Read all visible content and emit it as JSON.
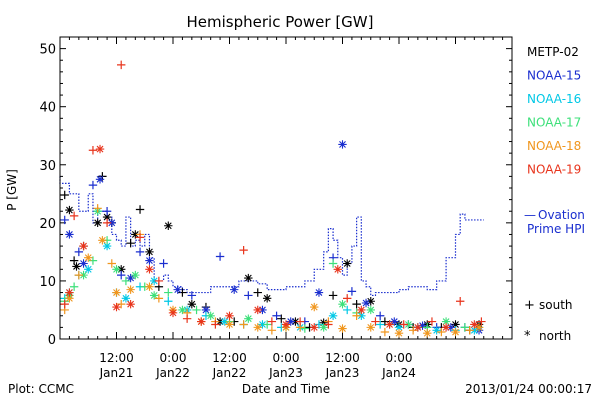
{
  "chart_data": {
    "type": "scatter",
    "title": "Hemispheric Power [GW]",
    "xlabel": "Date and Time",
    "ylabel": "P [GW]",
    "xlim": [
      "2013-01-20T00:00",
      "2013-01-24T00:00"
    ],
    "ylim": [
      0,
      52
    ],
    "y_ticks": [
      0,
      10,
      20,
      30,
      40,
      50
    ],
    "x_ticks": [
      {
        "t": "2013-01-20T12:00",
        "time": "12:00",
        "date": "Jan21"
      },
      {
        "t": "2013-01-21T00:00",
        "time": "0:00",
        "date": "Jan22"
      },
      {
        "t": "2013-01-21T12:00",
        "time": "12:00",
        "date": "Jan22"
      },
      {
        "t": "2013-01-22T00:00",
        "time": "0:00",
        "date": "Jan23"
      },
      {
        "t": "2013-01-22T12:00",
        "time": "12:00",
        "date": "Jan23"
      },
      {
        "t": "2013-01-23T00:00",
        "time": "0:00",
        "date": "Jan24"
      }
    ],
    "grid": false,
    "legend": "right",
    "series": [
      {
        "name": "METP-02",
        "color": "#000000",
        "points": [
          [
            1,
            24.8
          ],
          [
            2,
            22.2
          ],
          [
            3,
            13.5
          ],
          [
            3.5,
            12.5
          ],
          [
            5,
            16
          ],
          [
            8,
            20
          ],
          [
            9,
            28
          ],
          [
            10,
            21
          ],
          [
            11,
            20
          ],
          [
            13,
            12
          ],
          [
            15,
            16.5
          ],
          [
            16,
            18
          ],
          [
            17,
            22.3
          ],
          [
            19,
            15
          ],
          [
            21,
            9
          ],
          [
            23,
            19.5
          ],
          [
            26,
            8
          ],
          [
            28,
            6
          ],
          [
            31,
            5.5
          ],
          [
            34,
            3
          ],
          [
            37,
            3
          ],
          [
            40,
            10.5
          ],
          [
            42,
            8
          ],
          [
            44,
            7
          ],
          [
            47,
            3.5
          ],
          [
            50,
            3
          ],
          [
            53,
            2
          ],
          [
            56,
            2.8
          ],
          [
            58,
            7.5
          ],
          [
            61,
            13
          ],
          [
            63,
            6
          ],
          [
            66,
            6.5
          ],
          [
            69,
            3
          ],
          [
            72,
            2.5
          ],
          [
            75,
            2
          ],
          [
            78,
            2.5
          ],
          [
            81,
            2
          ],
          [
            84,
            2.5
          ],
          [
            87,
            1.5
          ],
          [
            89,
            2.5
          ]
        ]
      },
      {
        "name": "NOAA-15",
        "color": "#1a2ecf",
        "points": [
          [
            1,
            20.5
          ],
          [
            2,
            18
          ],
          [
            4,
            15
          ],
          [
            5,
            13
          ],
          [
            7,
            26.5
          ],
          [
            8.5,
            27.5
          ],
          [
            10,
            22
          ],
          [
            11,
            20
          ],
          [
            13,
            11
          ],
          [
            15,
            10.5
          ],
          [
            17,
            15
          ],
          [
            19,
            13.5
          ],
          [
            22,
            13
          ],
          [
            25,
            8.5
          ],
          [
            28,
            7.5
          ],
          [
            31,
            5
          ],
          [
            34,
            14.2
          ],
          [
            37,
            8.5
          ],
          [
            40,
            7.5
          ],
          [
            43,
            5
          ],
          [
            46,
            4
          ],
          [
            49,
            3
          ],
          [
            52,
            3
          ],
          [
            55,
            8
          ],
          [
            58,
            14
          ],
          [
            60,
            33.5
          ],
          [
            62,
            8.2
          ],
          [
            65,
            6.2
          ],
          [
            68,
            4
          ],
          [
            71,
            3
          ],
          [
            74,
            2.5
          ],
          [
            77,
            2.3
          ],
          [
            80,
            2
          ],
          [
            83,
            2
          ],
          [
            86,
            2
          ],
          [
            89,
            1.5
          ]
        ]
      },
      {
        "name": "NOAA-16",
        "color": "#00c8e6",
        "points": [
          [
            1,
            7
          ],
          [
            2,
            8
          ],
          [
            4,
            11
          ],
          [
            6,
            12
          ],
          [
            8,
            22
          ],
          [
            10,
            16
          ],
          [
            12,
            8
          ],
          [
            14,
            7
          ],
          [
            17,
            9
          ],
          [
            20,
            10
          ],
          [
            23,
            6.5
          ],
          [
            27,
            5
          ],
          [
            31,
            4
          ],
          [
            35,
            3
          ],
          [
            39,
            2.5
          ],
          [
            43,
            2.5
          ],
          [
            47,
            2
          ],
          [
            51,
            2
          ],
          [
            55,
            2.5
          ],
          [
            58,
            4
          ],
          [
            61,
            5
          ],
          [
            64,
            4
          ],
          [
            68,
            2.5
          ],
          [
            72,
            2
          ],
          [
            76,
            2
          ],
          [
            80,
            1.5
          ],
          [
            84,
            1.5
          ],
          [
            88,
            1.5
          ]
        ]
      },
      {
        "name": "NOAA-17",
        "color": "#3de07a",
        "points": [
          [
            1,
            6.5
          ],
          [
            2,
            7.5
          ],
          [
            3,
            9
          ],
          [
            5,
            11
          ],
          [
            7,
            13.5
          ],
          [
            8,
            22
          ],
          [
            10,
            17
          ],
          [
            12,
            12
          ],
          [
            14,
            10
          ],
          [
            16,
            11
          ],
          [
            18,
            9
          ],
          [
            20,
            7.5
          ],
          [
            23,
            8
          ],
          [
            26,
            5
          ],
          [
            29,
            5
          ],
          [
            32,
            4
          ],
          [
            36,
            3
          ],
          [
            40,
            3.5
          ],
          [
            44,
            2.5
          ],
          [
            48,
            2
          ],
          [
            52,
            1.8
          ],
          [
            56,
            2
          ],
          [
            58,
            13
          ],
          [
            60,
            6
          ],
          [
            63,
            4.5
          ],
          [
            66,
            5
          ],
          [
            70,
            2.5
          ],
          [
            74,
            2.5
          ],
          [
            78,
            2
          ],
          [
            82,
            3
          ],
          [
            86,
            2
          ],
          [
            89,
            2
          ]
        ]
      },
      {
        "name": "NOAA-18",
        "color": "#f0961e",
        "points": [
          [
            1,
            5
          ],
          [
            2,
            7
          ],
          [
            4,
            11
          ],
          [
            6,
            14
          ],
          [
            8,
            22.5
          ],
          [
            9,
            17
          ],
          [
            11,
            13
          ],
          [
            12,
            8
          ],
          [
            13,
            6
          ],
          [
            15,
            8.5
          ],
          [
            17,
            18
          ],
          [
            19,
            9
          ],
          [
            21,
            7
          ],
          [
            24,
            5
          ],
          [
            27,
            4.5
          ],
          [
            30,
            3
          ],
          [
            33,
            3
          ],
          [
            36,
            2.5
          ],
          [
            39,
            2.5
          ],
          [
            42,
            2
          ],
          [
            45,
            1.5
          ],
          [
            48,
            2
          ],
          [
            51,
            2
          ],
          [
            54,
            5.5
          ],
          [
            57,
            3
          ],
          [
            60,
            1.8
          ],
          [
            63,
            4
          ],
          [
            66,
            2
          ],
          [
            69,
            1.2
          ],
          [
            72,
            1
          ],
          [
            75,
            1.5
          ],
          [
            78,
            1
          ],
          [
            81,
            1.2
          ],
          [
            84,
            1.2
          ],
          [
            87,
            1.5
          ],
          [
            89,
            2
          ]
        ]
      },
      {
        "name": "NOAA-19",
        "color": "#e8341c",
        "points": [
          [
            1,
            6
          ],
          [
            2,
            8
          ],
          [
            3,
            21.2
          ],
          [
            5,
            16
          ],
          [
            7,
            32.5
          ],
          [
            8.5,
            32.7
          ],
          [
            10,
            20
          ],
          [
            12,
            5.5
          ],
          [
            13,
            47.2
          ],
          [
            15,
            6
          ],
          [
            17,
            17.5
          ],
          [
            19,
            12
          ],
          [
            21,
            10
          ],
          [
            24,
            4.5
          ],
          [
            27,
            3.5
          ],
          [
            30,
            3
          ],
          [
            33,
            2.5
          ],
          [
            36,
            4
          ],
          [
            39,
            15.3
          ],
          [
            42,
            5
          ],
          [
            45,
            3
          ],
          [
            48,
            2.5
          ],
          [
            51,
            3
          ],
          [
            54,
            2
          ],
          [
            57,
            2.5
          ],
          [
            59,
            12
          ],
          [
            61,
            7
          ],
          [
            64,
            5
          ],
          [
            67,
            3
          ],
          [
            70,
            2.5
          ],
          [
            73,
            2.5
          ],
          [
            76,
            2
          ],
          [
            79,
            3
          ],
          [
            82,
            2
          ],
          [
            85,
            6.5
          ],
          [
            88,
            2.5
          ],
          [
            89.5,
            3
          ]
        ]
      }
    ],
    "ovation_hpi": {
      "name": "Ovation Prime HPI",
      "color": "#1a2ecf",
      "legend_symbol": "—",
      "points": [
        [
          0,
          28
        ],
        [
          1,
          26.8
        ],
        [
          2,
          26.8
        ],
        [
          4,
          25
        ],
        [
          5,
          22
        ],
        [
          6,
          22
        ],
        [
          7,
          25
        ],
        [
          8,
          20
        ],
        [
          9,
          22
        ],
        [
          10,
          22
        ],
        [
          11,
          21
        ],
        [
          12,
          18
        ],
        [
          13,
          17
        ],
        [
          14,
          16
        ],
        [
          15,
          21
        ],
        [
          16,
          16
        ],
        [
          17,
          17
        ],
        [
          18,
          16
        ],
        [
          19,
          18
        ],
        [
          20,
          14
        ],
        [
          21,
          10
        ],
        [
          22,
          10
        ],
        [
          23,
          11
        ],
        [
          24,
          10
        ],
        [
          25,
          9
        ],
        [
          26,
          9
        ],
        [
          27,
          8.5
        ],
        [
          28,
          8
        ],
        [
          30,
          8
        ],
        [
          32,
          8
        ],
        [
          34,
          9
        ],
        [
          36,
          9
        ],
        [
          38,
          9
        ],
        [
          40,
          10
        ],
        [
          42,
          10
        ],
        [
          44,
          9.5
        ],
        [
          46,
          8.5
        ],
        [
          48,
          8.5
        ],
        [
          50,
          9
        ],
        [
          52,
          9
        ],
        [
          54,
          10
        ],
        [
          56,
          12
        ],
        [
          57,
          15
        ],
        [
          58,
          19
        ],
        [
          59,
          17
        ],
        [
          60,
          14
        ],
        [
          61,
          11
        ],
        [
          62,
          13
        ],
        [
          63,
          16
        ],
        [
          64,
          21
        ],
        [
          65,
          10
        ],
        [
          66,
          9
        ],
        [
          67,
          7.5
        ],
        [
          68,
          8
        ],
        [
          70,
          8
        ],
        [
          72,
          8
        ],
        [
          74,
          8.5
        ],
        [
          76,
          9
        ],
        [
          78,
          9
        ],
        [
          80,
          8.5
        ],
        [
          82,
          10
        ],
        [
          84,
          14
        ],
        [
          85,
          18
        ],
        [
          86,
          21.5
        ],
        [
          87,
          20.5
        ],
        [
          88,
          20.5
        ],
        [
          89,
          20.5
        ],
        [
          90,
          20.5
        ]
      ]
    },
    "marker_legend": [
      {
        "symbol": "+",
        "label": "south"
      },
      {
        "symbol": "*",
        "label": "north"
      }
    ]
  },
  "footer": {
    "plot_credit": "Plot: CCMC",
    "timestamp": "2013/01/24 00:00:17"
  }
}
